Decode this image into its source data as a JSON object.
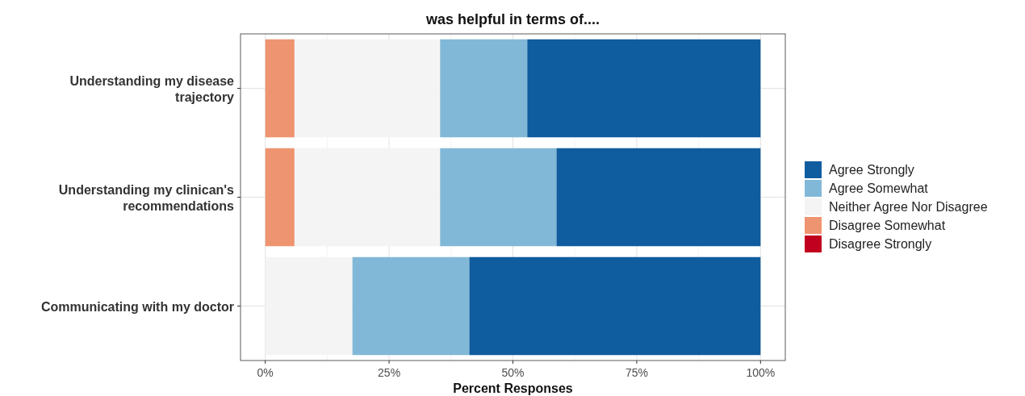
{
  "chart_data": {
    "type": "bar",
    "orientation": "horizontal",
    "stacked": true,
    "title": "was helpful in terms of....",
    "xlabel": "Percent Responses",
    "categories": [
      "Understanding my disease trajectory",
      "Understanding my clinican's recommendations",
      "Communicating with my doctor"
    ],
    "series": [
      {
        "name": "Disagree Strongly",
        "color": "#c0001e",
        "values": [
          0,
          0,
          0
        ]
      },
      {
        "name": "Disagree Somewhat",
        "color": "#ef9470",
        "values": [
          5.9,
          5.9,
          0
        ]
      },
      {
        "name": "Neither Agree Nor Disagree",
        "color": "#f4f4f4",
        "values": [
          29.4,
          29.4,
          17.6
        ]
      },
      {
        "name": "Agree Somewhat",
        "color": "#82b8d7",
        "values": [
          17.6,
          23.5,
          23.6
        ]
      },
      {
        "name": "Agree Strongly",
        "color": "#0f5c9e",
        "values": [
          47.1,
          41.2,
          58.8
        ]
      }
    ],
    "xlim": [
      -5,
      105
    ],
    "xticks": [
      {
        "value": 0,
        "label": "0%"
      },
      {
        "value": 25,
        "label": "25%"
      },
      {
        "value": 50,
        "label": "50%"
      },
      {
        "value": 75,
        "label": "75%"
      },
      {
        "value": 100,
        "label": "100%"
      }
    ],
    "grid": true,
    "legend": "right"
  }
}
